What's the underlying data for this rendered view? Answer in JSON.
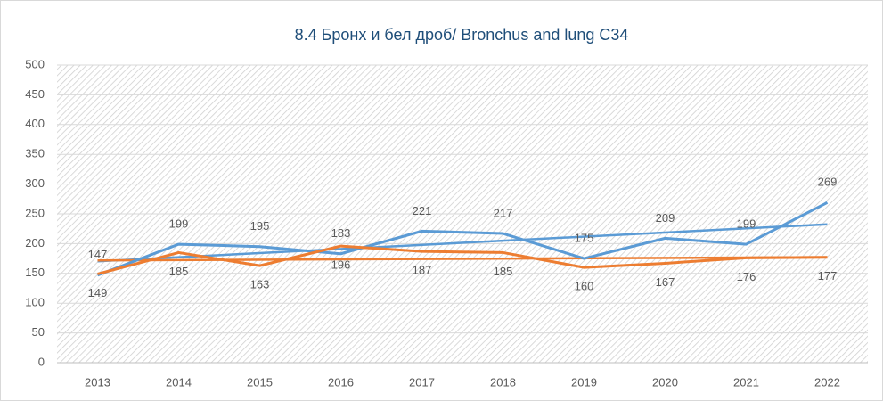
{
  "chart_data": {
    "type": "line",
    "title": "8.4 Бронх и бел дроб/ Bronchus and lung C34",
    "categories": [
      "2013",
      "2014",
      "2015",
      "2016",
      "2017",
      "2018",
      "2019",
      "2020",
      "2021",
      "2022"
    ],
    "series": [
      {
        "color": "#5b9bd5",
        "values": [
          147,
          199,
          195,
          183,
          221,
          217,
          175,
          209,
          199,
          269
        ],
        "label_position": "above",
        "trendline": "linear"
      },
      {
        "color": "#ed7d31",
        "values": [
          149,
          185,
          163,
          196,
          187,
          185,
          160,
          167,
          176,
          177
        ],
        "label_position": "below",
        "trendline": "linear"
      }
    ],
    "ylim": [
      0,
      500
    ],
    "yticks": [
      0,
      50,
      100,
      150,
      200,
      250,
      300,
      350,
      400,
      450,
      500
    ],
    "grid": true
  }
}
